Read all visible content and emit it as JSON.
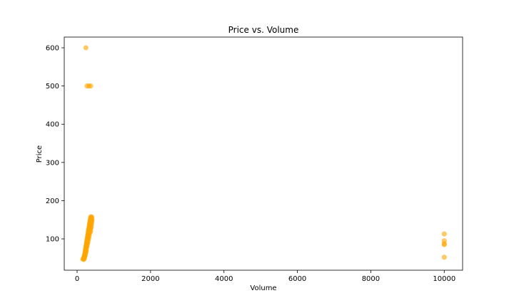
{
  "chart_data": {
    "type": "scatter",
    "title": "Price vs. Volume",
    "xlabel": "Volume",
    "ylabel": "Price",
    "xlim": [
      -350,
      10500
    ],
    "ylim": [
      18,
      628
    ],
    "x_ticks": [
      0,
      2000,
      4000,
      6000,
      8000,
      10000
    ],
    "y_ticks": [
      100,
      200,
      300,
      400,
      500,
      600
    ],
    "grid": false,
    "marker_color": "#FFA500",
    "marker_alpha": 0.6,
    "series": [
      {
        "points": [
          [
            240,
            600
          ],
          [
            270,
            500
          ],
          [
            320,
            500
          ],
          [
            370,
            500
          ],
          [
            10000,
            113
          ],
          [
            10000,
            95
          ],
          [
            10000,
            87
          ],
          [
            10000,
            85
          ],
          [
            10000,
            52
          ],
          [
            160,
            47
          ],
          [
            170,
            48
          ],
          [
            180,
            50
          ],
          [
            190,
            52
          ],
          [
            200,
            55
          ],
          [
            205,
            58
          ],
          [
            210,
            60
          ],
          [
            215,
            63
          ],
          [
            220,
            66
          ],
          [
            225,
            69
          ],
          [
            230,
            72
          ],
          [
            235,
            75
          ],
          [
            240,
            78
          ],
          [
            245,
            81
          ],
          [
            250,
            84
          ],
          [
            255,
            87
          ],
          [
            260,
            90
          ],
          [
            265,
            93
          ],
          [
            270,
            96
          ],
          [
            275,
            99
          ],
          [
            280,
            102
          ],
          [
            285,
            105
          ],
          [
            290,
            108
          ],
          [
            295,
            111
          ],
          [
            300,
            114
          ],
          [
            305,
            117
          ],
          [
            310,
            120
          ],
          [
            315,
            123
          ],
          [
            320,
            126
          ],
          [
            325,
            129
          ],
          [
            330,
            132
          ],
          [
            335,
            135
          ],
          [
            340,
            138
          ],
          [
            345,
            141
          ],
          [
            350,
            144
          ],
          [
            355,
            147
          ],
          [
            360,
            150
          ],
          [
            365,
            153
          ],
          [
            370,
            156
          ],
          [
            375,
            158
          ],
          [
            190,
            50
          ],
          [
            200,
            53
          ],
          [
            215,
            57
          ],
          [
            225,
            62
          ],
          [
            235,
            68
          ],
          [
            245,
            74
          ],
          [
            255,
            80
          ],
          [
            265,
            86
          ],
          [
            275,
            92
          ],
          [
            285,
            98
          ],
          [
            295,
            104
          ],
          [
            305,
            110
          ],
          [
            315,
            116
          ],
          [
            325,
            122
          ],
          [
            335,
            128
          ],
          [
            345,
            134
          ],
          [
            355,
            140
          ],
          [
            365,
            146
          ],
          [
            380,
            150
          ],
          [
            390,
            154
          ],
          [
            400,
            157
          ],
          [
            390,
            140
          ],
          [
            380,
            130
          ],
          [
            370,
            120
          ],
          [
            230,
            65
          ],
          [
            250,
            70
          ],
          [
            260,
            78
          ],
          [
            280,
            88
          ],
          [
            300,
            95
          ],
          [
            320,
            105
          ],
          [
            340,
            115
          ],
          [
            360,
            125
          ],
          [
            385,
            135
          ],
          [
            395,
            145
          ],
          [
            400,
            152
          ],
          [
            405,
            148
          ],
          [
            210,
            54
          ],
          [
            220,
            59
          ],
          [
            240,
            66
          ],
          [
            270,
            82
          ],
          [
            290,
            90
          ],
          [
            310,
            100
          ],
          [
            330,
            110
          ],
          [
            350,
            118
          ],
          [
            370,
            128
          ],
          [
            385,
            138
          ],
          [
            180,
            46
          ],
          [
            195,
            49
          ]
        ]
      }
    ]
  }
}
